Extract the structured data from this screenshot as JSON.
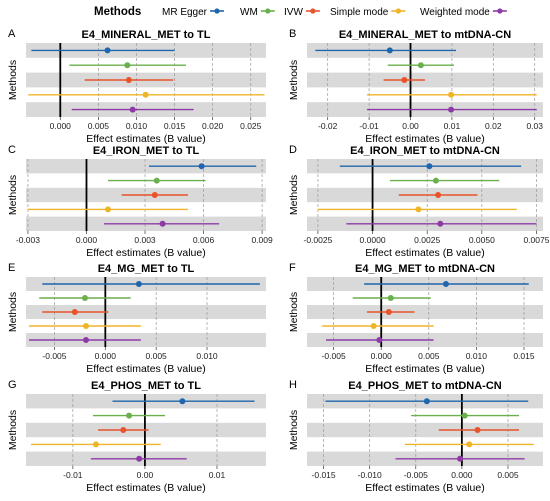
{
  "legend": {
    "title": "Methods",
    "items": [
      {
        "name": "MR Egger",
        "color": "#2166ac"
      },
      {
        "name": "WM",
        "color": "#6ab04c"
      },
      {
        "name": "IVW",
        "color": "#e8532b"
      },
      {
        "name": "Simple mode",
        "color": "#f0b429"
      },
      {
        "name": "Weighted mode",
        "color": "#8e3aa6"
      }
    ]
  },
  "colors": {
    "MR Egger": "#2166ac",
    "WM": "#6ab04c",
    "IVW": "#e8532b",
    "Simple mode": "#f0b429",
    "Weighted mode": "#8e3aa6"
  },
  "chart_data": [
    {
      "panel": "A",
      "type": "forest",
      "title": "E4_MINERAL_MET to TL",
      "xlabel": "Effect estimates (B value)",
      "ylabel": "Methods",
      "xlim": [
        -0.0045,
        0.027
      ],
      "xticks": [
        0.0,
        0.005,
        0.01,
        0.015,
        0.02,
        0.025
      ],
      "xticklabels": [
        "0.000",
        "0.005",
        "0.010",
        "0.015",
        "0.020",
        "0.025"
      ],
      "series": [
        {
          "name": "MR Egger",
          "est": 0.0062,
          "lo": -0.0038,
          "hi": 0.015
        },
        {
          "name": "WM",
          "est": 0.0088,
          "lo": 0.0012,
          "hi": 0.0165
        },
        {
          "name": "IVW",
          "est": 0.009,
          "lo": 0.0032,
          "hi": 0.0148
        },
        {
          "name": "Simple mode",
          "est": 0.0112,
          "lo": -0.0042,
          "hi": 0.0268
        },
        {
          "name": "Weighted mode",
          "est": 0.0095,
          "lo": 0.0015,
          "hi": 0.0175
        }
      ]
    },
    {
      "panel": "B",
      "type": "forest",
      "title": "E4_MINERAL_MET to mtDNA-CN",
      "xlabel": "Effect estimates (B value)",
      "ylabel": "Methods",
      "xlim": [
        -0.025,
        0.032
      ],
      "xticks": [
        -0.02,
        -0.01,
        0.0,
        0.01,
        0.02,
        0.03
      ],
      "xticklabels": [
        "-0.02",
        "-0.01",
        "0.00",
        "0.01",
        "0.02",
        "0.03"
      ],
      "series": [
        {
          "name": "MR Egger",
          "est": -0.005,
          "lo": -0.023,
          "hi": 0.011
        },
        {
          "name": "WM",
          "est": 0.0025,
          "lo": -0.0055,
          "hi": 0.0105
        },
        {
          "name": "IVW",
          "est": -0.0015,
          "lo": -0.0065,
          "hi": 0.0035
        },
        {
          "name": "Simple mode",
          "est": 0.0098,
          "lo": -0.0105,
          "hi": 0.0305
        },
        {
          "name": "Weighted mode",
          "est": 0.0098,
          "lo": -0.0105,
          "hi": 0.0305
        }
      ]
    },
    {
      "panel": "C",
      "type": "forest",
      "title": "E4_IRON_MET to TL",
      "xlabel": "Effect estimates (B value)",
      "ylabel": "Methods",
      "xlim": [
        -0.0031,
        0.0092
      ],
      "xticks": [
        -0.003,
        0.0,
        0.003,
        0.006,
        0.009
      ],
      "xticklabels": [
        "-0.003",
        "0.000",
        "0.003",
        "0.006",
        "0.009"
      ],
      "series": [
        {
          "name": "MR Egger",
          "est": 0.0059,
          "lo": 0.0032,
          "hi": 0.0087
        },
        {
          "name": "WM",
          "est": 0.0036,
          "lo": 0.0011,
          "hi": 0.0061
        },
        {
          "name": "IVW",
          "est": 0.0035,
          "lo": 0.0018,
          "hi": 0.0052
        },
        {
          "name": "Simple mode",
          "est": 0.0011,
          "lo": -0.003,
          "hi": 0.0052
        },
        {
          "name": "Weighted mode",
          "est": 0.0039,
          "lo": 0.0009,
          "hi": 0.0068
        }
      ]
    },
    {
      "panel": "D",
      "type": "forest",
      "title": "E4_IRON_MET to mtDNA-CN",
      "xlabel": "Effect estimates (B value)",
      "ylabel": "Methods",
      "xlim": [
        -0.003,
        0.0078
      ],
      "xticks": [
        -0.0025,
        0.0,
        0.0025,
        0.005,
        0.0075
      ],
      "xticklabels": [
        "-0.0025",
        "0.0000",
        "0.0025",
        "0.0050",
        "0.0075"
      ],
      "series": [
        {
          "name": "MR Egger",
          "est": 0.0026,
          "lo": -0.0015,
          "hi": 0.0068
        },
        {
          "name": "WM",
          "est": 0.0029,
          "lo": 0.0008,
          "hi": 0.0058
        },
        {
          "name": "IVW",
          "est": 0.003,
          "lo": 0.0012,
          "hi": 0.0048
        },
        {
          "name": "Simple mode",
          "est": 0.0021,
          "lo": -0.0025,
          "hi": 0.0066
        },
        {
          "name": "Weighted mode",
          "est": 0.0031,
          "lo": -0.0012,
          "hi": 0.0075
        }
      ]
    },
    {
      "panel": "E",
      "type": "forest",
      "title": "E4_MG_MET to TL",
      "xlabel": "Effect estimates (B value)",
      "ylabel": "Methods",
      "xlim": [
        -0.0078,
        0.0158
      ],
      "xticks": [
        -0.005,
        0.0,
        0.005,
        0.01
      ],
      "xticklabels": [
        "-0.005",
        "0.000",
        "0.005",
        "0.010"
      ],
      "series": [
        {
          "name": "MR Egger",
          "est": 0.0033,
          "lo": -0.0062,
          "hi": 0.0152
        },
        {
          "name": "WM",
          "est": -0.002,
          "lo": -0.0065,
          "hi": 0.0025
        },
        {
          "name": "IVW",
          "est": -0.003,
          "lo": -0.0062,
          "hi": 0.0003
        },
        {
          "name": "Simple mode",
          "est": -0.0019,
          "lo": -0.0075,
          "hi": 0.0035
        },
        {
          "name": "Weighted mode",
          "est": -0.0019,
          "lo": -0.0075,
          "hi": 0.0035
        }
      ]
    },
    {
      "panel": "F",
      "type": "forest",
      "title": "E4_MG_MET  to mtDNA-CN",
      "xlabel": "Effect estimates (B value)",
      "ylabel": "Methods",
      "xlim": [
        -0.0078,
        0.017
      ],
      "xticks": [
        -0.005,
        0.0,
        0.005,
        0.01,
        0.015
      ],
      "xticklabels": [
        "-0.005",
        "0.000",
        "0.005",
        "0.010",
        "0.015"
      ],
      "series": [
        {
          "name": "MR Egger",
          "est": 0.0068,
          "lo": -0.0018,
          "hi": 0.0155
        },
        {
          "name": "WM",
          "est": 0.001,
          "lo": -0.003,
          "hi": 0.0052
        },
        {
          "name": "IVW",
          "est": 0.0008,
          "lo": -0.0015,
          "hi": 0.0035
        },
        {
          "name": "Simple mode",
          "est": -0.0008,
          "lo": -0.0062,
          "hi": 0.0055
        },
        {
          "name": "Weighted mode",
          "est": -0.0002,
          "lo": -0.0058,
          "hi": 0.0055
        }
      ]
    },
    {
      "panel": "G",
      "type": "forest",
      "title": "E4_PHOS_MET to TL",
      "xlabel": "Effect estimates (B value)",
      "ylabel": "Methods",
      "xlim": [
        -0.0165,
        0.0168
      ],
      "xticks": [
        -0.01,
        0.0,
        0.01
      ],
      "xticklabels": [
        "-0.01",
        "0.00",
        "0.01"
      ],
      "series": [
        {
          "name": "MR Egger",
          "est": 0.0052,
          "lo": -0.0045,
          "hi": 0.0152
        },
        {
          "name": "WM",
          "est": -0.0022,
          "lo": -0.0072,
          "hi": 0.0028
        },
        {
          "name": "IVW",
          "est": -0.003,
          "lo": -0.0065,
          "hi": 0.0005
        },
        {
          "name": "Simple mode",
          "est": -0.0068,
          "lo": -0.0158,
          "hi": 0.0022
        },
        {
          "name": "Weighted mode",
          "est": -0.0008,
          "lo": -0.0075,
          "hi": 0.0058
        }
      ]
    },
    {
      "panel": "H",
      "type": "forest",
      "title": "E4_PHOS_MET to mtDNA-CN",
      "xlabel": "Effect estimates (B value)",
      "ylabel": "Methods",
      "xlim": [
        -0.0168,
        0.0088
      ],
      "xticks": [
        -0.015,
        -0.01,
        -0.005,
        0.0,
        0.005
      ],
      "xticklabels": [
        "-0.015",
        "-0.010",
        "-0.005",
        "0.000",
        "0.005"
      ],
      "series": [
        {
          "name": "MR Egger",
          "est": -0.0038,
          "lo": -0.0148,
          "hi": 0.0072
        },
        {
          "name": "WM",
          "est": 0.0003,
          "lo": -0.0055,
          "hi": 0.0062
        },
        {
          "name": "IVW",
          "est": 0.0017,
          "lo": -0.0025,
          "hi": 0.0062
        },
        {
          "name": "Simple mode",
          "est": 0.0008,
          "lo": -0.0062,
          "hi": 0.0078
        },
        {
          "name": "Weighted mode",
          "est": -0.0002,
          "lo": -0.0072,
          "hi": 0.0068
        }
      ]
    }
  ]
}
